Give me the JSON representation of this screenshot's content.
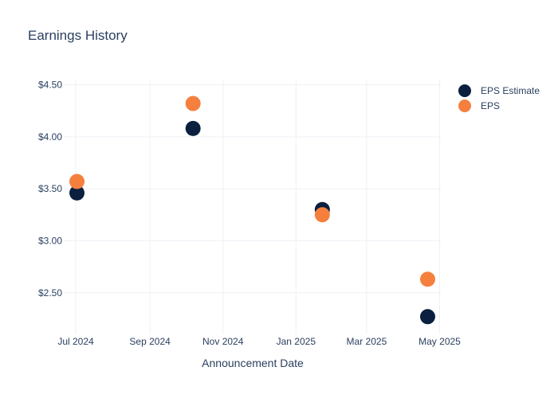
{
  "chart_data": {
    "type": "scatter",
    "title": "Earnings History",
    "xlabel": "Announcement Date",
    "ylabel": "",
    "x_ticks": [
      "Jul 2024",
      "Sep 2024",
      "Nov 2024",
      "Jan 2025",
      "Mar 2025",
      "May 2025"
    ],
    "x_tick_dates": [
      "2024-07-01",
      "2024-09-01",
      "2024-11-01",
      "2025-01-01",
      "2025-03-01",
      "2025-05-01"
    ],
    "x_range": [
      "2024-06-21",
      "2025-05-02"
    ],
    "y_ticks": [
      "$2.50",
      "$3.00",
      "$3.50",
      "$4.00",
      "$4.50"
    ],
    "y_tick_values": [
      2.5,
      3.0,
      3.5,
      4.0,
      4.5
    ],
    "ylim": [
      2.1,
      4.55
    ],
    "grid": true,
    "legend_position": "top-right",
    "series": [
      {
        "name": "EPS Estimate",
        "color": "#0b1f3f",
        "x": [
          "2024-07-02",
          "2024-10-07",
          "2025-01-23",
          "2025-04-21"
        ],
        "y": [
          3.46,
          4.08,
          3.3,
          2.27
        ]
      },
      {
        "name": "EPS",
        "color": "#f5803e",
        "x": [
          "2024-07-02",
          "2024-10-07",
          "2025-01-23",
          "2025-04-21"
        ],
        "y": [
          3.57,
          4.32,
          3.25,
          2.63
        ]
      }
    ]
  }
}
